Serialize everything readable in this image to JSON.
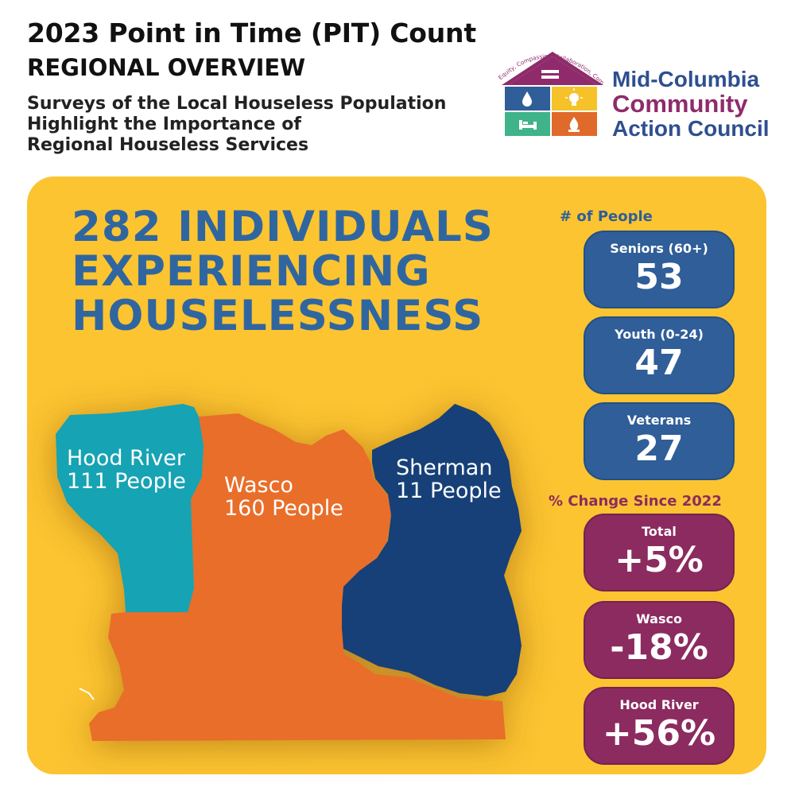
{
  "header": {
    "title": "2023 Point in Time (PIT) Count",
    "subtitle": "REGIONAL OVERVIEW",
    "body_lines": [
      "Surveys of the Local Houseless Population",
      "Highlight the Importance of",
      "Regional Houseless Services"
    ]
  },
  "logo": {
    "line1": "Mid-Columbia",
    "line2": "Community",
    "line3": "Action Council",
    "roof_text": "Equity, Compassion, Collaboration, Community, Respect",
    "icons": [
      "equals-icon",
      "water-drop-icon",
      "light-bulb-icon",
      "bed-icon",
      "flame-icon"
    ],
    "colors": {
      "roof": "#8f2b6b",
      "blue": "#2f5e98",
      "yellow": "#f6c22a",
      "green": "#3fb38a",
      "orange": "#e06a2a"
    }
  },
  "headline": [
    "282 INDIVIDUALS",
    "EXPERIENCING",
    "HOUSELESSNESS"
  ],
  "people": {
    "label": "# of People",
    "stats": [
      {
        "label": "Seniors (60+)",
        "value": "53"
      },
      {
        "label": "Youth (0-24)",
        "value": "47"
      },
      {
        "label": "Veterans",
        "value": "27"
      }
    ]
  },
  "change": {
    "label": "% Change Since 2022",
    "stats": [
      {
        "label": "Total",
        "value": "+5%"
      },
      {
        "label": "Wasco",
        "value": "-18%"
      },
      {
        "label": "Hood River",
        "value": "+56%"
      }
    ]
  },
  "map": {
    "hood_river": {
      "name": "Hood River",
      "count": "111 People",
      "color": "#15a3b3"
    },
    "wasco": {
      "name": "Wasco",
      "count": "160 People",
      "color": "#e86e2a"
    },
    "sherman": {
      "name": "Sherman",
      "count": "11 People",
      "color": "#173f77"
    }
  },
  "colors": {
    "panel": "#fcc430",
    "headline": "#3066a0",
    "stat_blue": "#2f5e98",
    "stat_purple": "#8c2b60"
  }
}
